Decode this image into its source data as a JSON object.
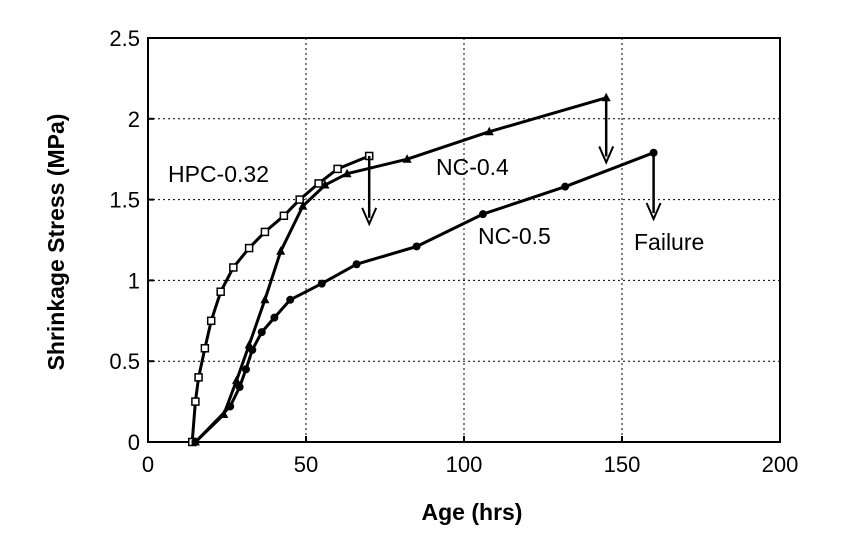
{
  "chart_data": {
    "type": "line",
    "xlabel": "Age (hrs)",
    "ylabel": "Shrinkage Stress (MPa)",
    "xlim": [
      0,
      200
    ],
    "ylim": [
      0,
      2.5
    ],
    "xticks": [
      0,
      50,
      100,
      150,
      200
    ],
    "yticks": [
      0,
      0.5,
      1,
      1.5,
      2,
      2.5
    ],
    "xtick_labels": [
      "0",
      "50",
      "100",
      "150",
      "200"
    ],
    "ytick_labels": [
      "0",
      "0.5",
      "1",
      "1.5",
      "2",
      "2.5"
    ],
    "grid": true,
    "series": [
      {
        "name": "HPC-0.32",
        "marker": "square",
        "x": [
          14,
          15,
          16,
          18,
          20,
          23,
          27,
          32,
          37,
          43,
          48,
          54,
          60,
          70
        ],
        "y": [
          0,
          0.25,
          0.4,
          0.58,
          0.75,
          0.93,
          1.08,
          1.2,
          1.3,
          1.4,
          1.5,
          1.6,
          1.69,
          1.77
        ]
      },
      {
        "name": "NC-0.4",
        "marker": "triangle",
        "x": [
          15,
          24,
          28,
          32,
          37,
          42,
          49,
          56,
          63,
          82,
          108,
          145
        ],
        "y": [
          0,
          0.17,
          0.38,
          0.6,
          0.88,
          1.18,
          1.46,
          1.59,
          1.66,
          1.75,
          1.92,
          2.13
        ]
      },
      {
        "name": "NC-0.5",
        "marker": "circle",
        "x": [
          15,
          26,
          29,
          31,
          33,
          36,
          40,
          45,
          55,
          66,
          85,
          106,
          132,
          160
        ],
        "y": [
          0,
          0.22,
          0.34,
          0.45,
          0.57,
          0.68,
          0.77,
          0.88,
          0.98,
          1.1,
          1.21,
          1.41,
          1.58,
          1.79
        ]
      }
    ],
    "failure_arrows": [
      {
        "x": 70,
        "y_from": 1.77,
        "y_to": 1.35
      },
      {
        "x": 145,
        "y_from": 2.13,
        "y_to": 1.73
      },
      {
        "x": 160,
        "y_from": 1.79,
        "y_to": 1.38
      }
    ],
    "annotations": {
      "hpc": "HPC-0.32",
      "nc04": "NC-0.4",
      "nc05": "NC-0.5",
      "failure": "Failure"
    }
  }
}
